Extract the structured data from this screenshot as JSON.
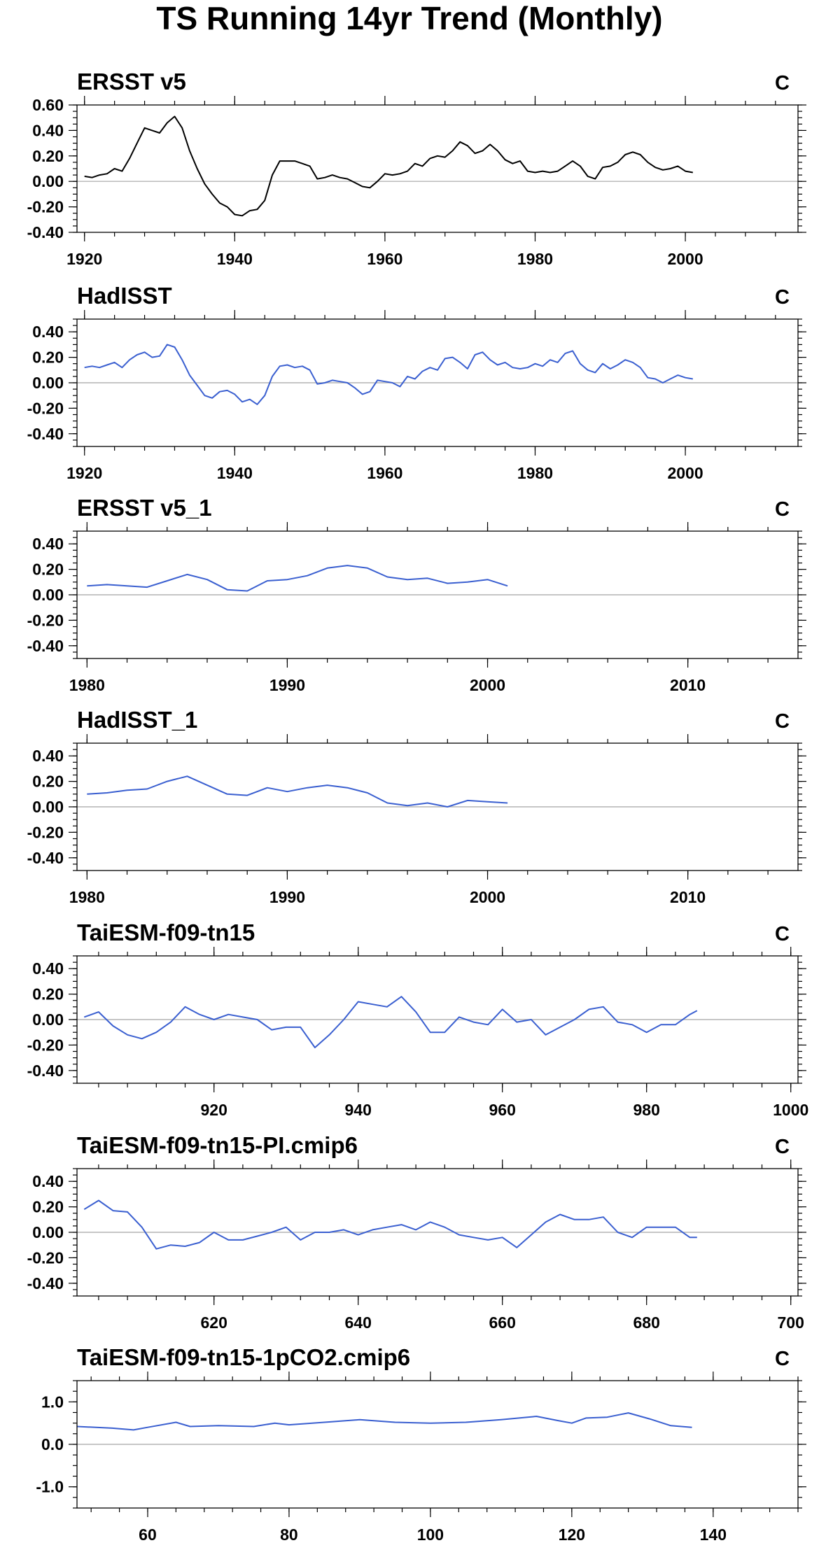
{
  "title": "TS Running 14yr Trend (Monthly)",
  "chart_data": [
    {
      "type": "line",
      "title": "ERSST v5",
      "unit_label": "C",
      "color": "#000000",
      "xlim": [
        1919,
        2015
      ],
      "xticks": [
        1920,
        1940,
        1960,
        1980,
        2000
      ],
      "ylim": [
        -0.4,
        0.6
      ],
      "yticks": [
        -0.4,
        -0.2,
        0.0,
        0.2,
        0.4,
        0.6
      ],
      "ytick_labels": [
        "-0.40",
        "-0.20",
        "0.00",
        "0.20",
        "0.40",
        "0.60"
      ],
      "x": [
        1920,
        1921,
        1922,
        1923,
        1924,
        1925,
        1926,
        1927,
        1928,
        1929,
        1930,
        1931,
        1932,
        1933,
        1934,
        1935,
        1936,
        1937,
        1938,
        1939,
        1940,
        1941,
        1942,
        1943,
        1944,
        1945,
        1946,
        1947,
        1948,
        1949,
        1950,
        1951,
        1952,
        1953,
        1954,
        1955,
        1956,
        1957,
        1958,
        1959,
        1960,
        1961,
        1962,
        1963,
        1964,
        1965,
        1966,
        1967,
        1968,
        1969,
        1970,
        1971,
        1972,
        1973,
        1974,
        1975,
        1976,
        1977,
        1978,
        1979,
        1980,
        1981,
        1982,
        1983,
        1984,
        1985,
        1986,
        1987,
        1988,
        1989,
        1990,
        1991,
        1992,
        1993,
        1994,
        1995,
        1996,
        1997,
        1998,
        1999,
        2000,
        2001
      ],
      "y": [
        0.04,
        0.03,
        0.05,
        0.06,
        0.1,
        0.08,
        0.18,
        0.3,
        0.42,
        0.4,
        0.38,
        0.46,
        0.51,
        0.42,
        0.24,
        0.1,
        -0.02,
        -0.1,
        -0.17,
        -0.2,
        -0.26,
        -0.27,
        -0.23,
        -0.22,
        -0.15,
        0.05,
        0.16,
        0.16,
        0.16,
        0.14,
        0.12,
        0.02,
        0.03,
        0.05,
        0.03,
        0.02,
        -0.01,
        -0.04,
        -0.05,
        0.0,
        0.06,
        0.05,
        0.06,
        0.08,
        0.14,
        0.12,
        0.18,
        0.2,
        0.19,
        0.24,
        0.31,
        0.28,
        0.22,
        0.24,
        0.29,
        0.24,
        0.17,
        0.14,
        0.16,
        0.08,
        0.07,
        0.08,
        0.07,
        0.08,
        0.12,
        0.16,
        0.12,
        0.04,
        0.02,
        0.11,
        0.12,
        0.15,
        0.21,
        0.23,
        0.21,
        0.15,
        0.11,
        0.09,
        0.1,
        0.12,
        0.08,
        0.07
      ]
    },
    {
      "type": "line",
      "title": "HadISST",
      "unit_label": "C",
      "color": "#3a5fd0",
      "xlim": [
        1919,
        2015
      ],
      "xticks": [
        1920,
        1940,
        1960,
        1980,
        2000
      ],
      "ylim": [
        -0.5,
        0.5
      ],
      "yticks": [
        -0.4,
        -0.2,
        0.0,
        0.2,
        0.4
      ],
      "ytick_labels": [
        "-0.40",
        "-0.20",
        "0.00",
        "0.20",
        "0.40"
      ],
      "x": [
        1920,
        1921,
        1922,
        1923,
        1924,
        1925,
        1926,
        1927,
        1928,
        1929,
        1930,
        1931,
        1932,
        1933,
        1934,
        1935,
        1936,
        1937,
        1938,
        1939,
        1940,
        1941,
        1942,
        1943,
        1944,
        1945,
        1946,
        1947,
        1948,
        1949,
        1950,
        1951,
        1952,
        1953,
        1954,
        1955,
        1956,
        1957,
        1958,
        1959,
        1960,
        1961,
        1962,
        1963,
        1964,
        1965,
        1966,
        1967,
        1968,
        1969,
        1970,
        1971,
        1972,
        1973,
        1974,
        1975,
        1976,
        1977,
        1978,
        1979,
        1980,
        1981,
        1982,
        1983,
        1984,
        1985,
        1986,
        1987,
        1988,
        1989,
        1990,
        1991,
        1992,
        1993,
        1994,
        1995,
        1996,
        1997,
        1998,
        1999,
        2000,
        2001
      ],
      "y": [
        0.12,
        0.13,
        0.12,
        0.14,
        0.16,
        0.12,
        0.18,
        0.22,
        0.24,
        0.2,
        0.21,
        0.3,
        0.28,
        0.18,
        0.06,
        -0.02,
        -0.1,
        -0.12,
        -0.07,
        -0.06,
        -0.09,
        -0.15,
        -0.13,
        -0.17,
        -0.1,
        0.05,
        0.13,
        0.14,
        0.12,
        0.13,
        0.1,
        -0.01,
        0.0,
        0.02,
        0.01,
        0.0,
        -0.04,
        -0.09,
        -0.07,
        0.02,
        0.01,
        0.0,
        -0.03,
        0.05,
        0.03,
        0.09,
        0.12,
        0.1,
        0.19,
        0.2,
        0.16,
        0.11,
        0.22,
        0.24,
        0.18,
        0.14,
        0.16,
        0.12,
        0.11,
        0.12,
        0.15,
        0.13,
        0.18,
        0.16,
        0.23,
        0.25,
        0.15,
        0.1,
        0.08,
        0.15,
        0.11,
        0.14,
        0.18,
        0.16,
        0.12,
        0.04,
        0.03,
        0.0,
        0.03,
        0.06,
        0.04,
        0.03
      ]
    },
    {
      "type": "line",
      "title": "ERSST v5_1",
      "unit_label": "C",
      "color": "#3a5fd0",
      "xlim": [
        1979.5,
        2015.5
      ],
      "xticks": [
        1980,
        1990,
        2000,
        2010
      ],
      "ylim": [
        -0.5,
        0.5
      ],
      "yticks": [
        -0.4,
        -0.2,
        0.0,
        0.2,
        0.4
      ],
      "ytick_labels": [
        "-0.40",
        "-0.20",
        "0.00",
        "0.20",
        "0.40"
      ],
      "x": [
        1980,
        1981,
        1982,
        1983,
        1984,
        1985,
        1986,
        1987,
        1988,
        1989,
        1990,
        1991,
        1992,
        1993,
        1994,
        1995,
        1996,
        1997,
        1998,
        1999,
        2000,
        2001
      ],
      "y": [
        0.07,
        0.08,
        0.07,
        0.06,
        0.11,
        0.16,
        0.12,
        0.04,
        0.03,
        0.11,
        0.12,
        0.15,
        0.21,
        0.23,
        0.21,
        0.14,
        0.12,
        0.13,
        0.09,
        0.1,
        0.12,
        0.07
      ]
    },
    {
      "type": "line",
      "title": "HadISST_1",
      "unit_label": "C",
      "color": "#3a5fd0",
      "xlim": [
        1979.5,
        2015.5
      ],
      "xticks": [
        1980,
        1990,
        2000,
        2010
      ],
      "ylim": [
        -0.5,
        0.5
      ],
      "yticks": [
        -0.4,
        -0.2,
        0.0,
        0.2,
        0.4
      ],
      "ytick_labels": [
        "-0.40",
        "-0.20",
        "0.00",
        "0.20",
        "0.40"
      ],
      "x": [
        1980,
        1981,
        1982,
        1983,
        1984,
        1985,
        1986,
        1987,
        1988,
        1989,
        1990,
        1991,
        1992,
        1993,
        1994,
        1995,
        1996,
        1997,
        1998,
        1999,
        2000,
        2001
      ],
      "y": [
        0.1,
        0.11,
        0.13,
        0.14,
        0.2,
        0.24,
        0.17,
        0.1,
        0.09,
        0.15,
        0.12,
        0.15,
        0.17,
        0.15,
        0.11,
        0.03,
        0.01,
        0.03,
        0.0,
        0.05,
        0.04,
        0.03
      ]
    },
    {
      "type": "line",
      "title": "TaiESM-f09-tn15",
      "unit_label": "C",
      "color": "#3a5fd0",
      "xlim": [
        901,
        1001
      ],
      "xticks": [
        920,
        940,
        960,
        980,
        1000
      ],
      "ylim": [
        -0.5,
        0.5
      ],
      "yticks": [
        -0.4,
        -0.2,
        0.0,
        0.2,
        0.4
      ],
      "ytick_labels": [
        "-0.40",
        "-0.20",
        "0.00",
        "0.20",
        "0.40"
      ],
      "x": [
        902,
        904,
        906,
        908,
        910,
        912,
        914,
        916,
        918,
        920,
        922,
        924,
        926,
        928,
        930,
        932,
        934,
        936,
        938,
        940,
        942,
        944,
        946,
        948,
        950,
        952,
        954,
        956,
        958,
        960,
        962,
        964,
        966,
        968,
        970,
        972,
        974,
        976,
        978,
        980,
        982,
        984,
        986,
        987
      ],
      "y": [
        0.02,
        0.06,
        -0.05,
        -0.12,
        -0.15,
        -0.1,
        -0.02,
        0.1,
        0.04,
        0.0,
        0.04,
        0.02,
        0.0,
        -0.08,
        -0.06,
        -0.06,
        -0.22,
        -0.12,
        0.0,
        0.14,
        0.12,
        0.1,
        0.18,
        0.06,
        -0.1,
        -0.1,
        0.02,
        -0.02,
        -0.04,
        0.08,
        -0.02,
        0.0,
        -0.12,
        -0.06,
        0.0,
        0.08,
        0.1,
        -0.02,
        -0.04,
        -0.1,
        -0.04,
        -0.04,
        0.04,
        0.07
      ]
    },
    {
      "type": "line",
      "title": "TaiESM-f09-tn15-PI.cmip6",
      "unit_label": "C",
      "color": "#3a5fd0",
      "xlim": [
        601,
        701
      ],
      "xticks": [
        620,
        640,
        660,
        680,
        700
      ],
      "ylim": [
        -0.5,
        0.5
      ],
      "yticks": [
        -0.4,
        -0.2,
        0.0,
        0.2,
        0.4
      ],
      "ytick_labels": [
        "-0.40",
        "-0.20",
        "0.00",
        "0.20",
        "0.40"
      ],
      "x": [
        602,
        604,
        606,
        608,
        610,
        612,
        614,
        616,
        618,
        620,
        622,
        624,
        626,
        628,
        630,
        632,
        634,
        636,
        638,
        640,
        642,
        644,
        646,
        648,
        650,
        652,
        654,
        656,
        658,
        660,
        662,
        664,
        666,
        668,
        670,
        672,
        674,
        676,
        678,
        680,
        682,
        684,
        686,
        687
      ],
      "y": [
        0.18,
        0.25,
        0.17,
        0.16,
        0.04,
        -0.13,
        -0.1,
        -0.11,
        -0.08,
        0.0,
        -0.06,
        -0.06,
        -0.03,
        0.0,
        0.04,
        -0.06,
        0.0,
        0.0,
        0.02,
        -0.02,
        0.02,
        0.04,
        0.06,
        0.02,
        0.08,
        0.04,
        -0.02,
        -0.04,
        -0.06,
        -0.04,
        -0.12,
        -0.02,
        0.08,
        0.14,
        0.1,
        0.1,
        0.12,
        0.0,
        -0.04,
        0.04,
        0.04,
        0.04,
        -0.04,
        -0.04
      ]
    },
    {
      "type": "line",
      "title": "TaiESM-f09-tn15-1pCO2.cmip6",
      "unit_label": "C",
      "color": "#3a5fd0",
      "xlim": [
        50,
        152
      ],
      "xticks": [
        60,
        80,
        100,
        120,
        140
      ],
      "ylim": [
        -1.5,
        1.5
      ],
      "yticks": [
        -1.0,
        0.0,
        1.0
      ],
      "ytick_labels": [
        "-1.0",
        "0.0",
        "1.0"
      ],
      "x": [
        50,
        55,
        58,
        60,
        64,
        66,
        70,
        75,
        78,
        80,
        85,
        90,
        95,
        100,
        105,
        110,
        115,
        118,
        120,
        122,
        125,
        128,
        131,
        134,
        137
      ],
      "y": [
        0.42,
        0.38,
        0.34,
        0.4,
        0.52,
        0.42,
        0.44,
        0.42,
        0.5,
        0.46,
        0.52,
        0.58,
        0.52,
        0.5,
        0.52,
        0.58,
        0.66,
        0.56,
        0.5,
        0.62,
        0.64,
        0.74,
        0.6,
        0.44,
        0.4
      ]
    }
  ]
}
